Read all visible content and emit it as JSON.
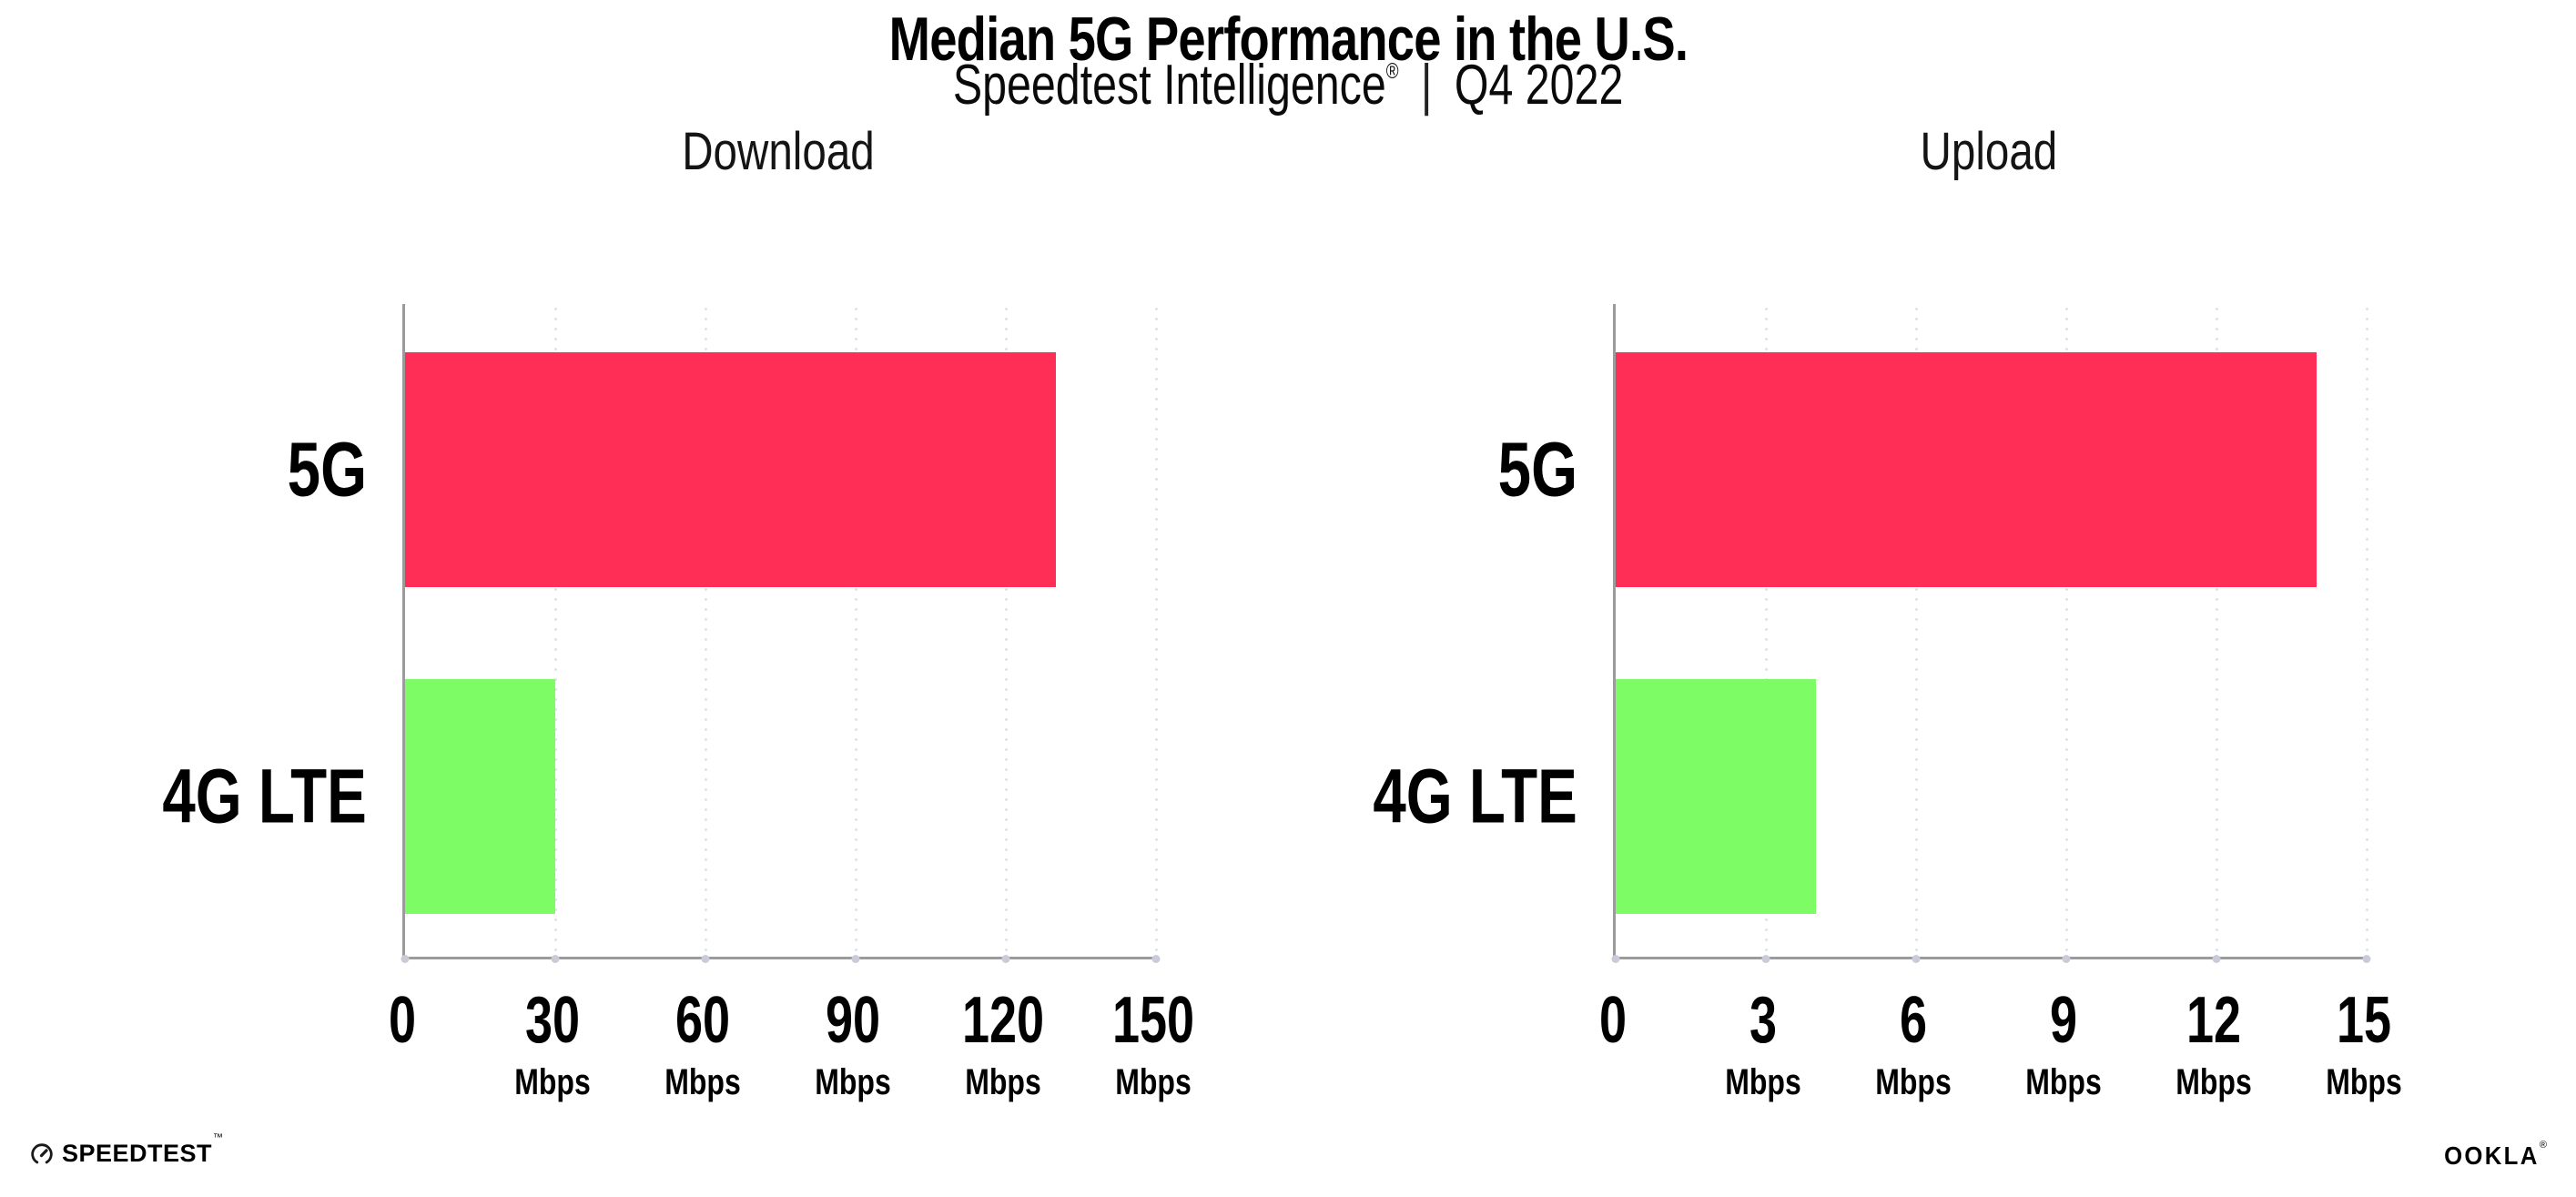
{
  "header": {
    "title": "Median 5G Performance in the U.S.",
    "subtitle_brand": "Speedtest Intelligence",
    "subtitle_reg": "®",
    "subtitle_divider": "|",
    "subtitle_period": "Q4 2022"
  },
  "chart_data": [
    {
      "type": "bar",
      "orientation": "horizontal",
      "title": "Download",
      "categories": [
        "5G",
        "4G LTE"
      ],
      "values": [
        130,
        30
      ],
      "unit": "Mbps",
      "xlim": [
        0,
        150
      ],
      "ticks": [
        0,
        30,
        60,
        90,
        120,
        150
      ],
      "grid": "dotted-vertical",
      "legend": "none",
      "bar_colors": [
        "#ff2e56",
        "#7dfc66"
      ]
    },
    {
      "type": "bar",
      "orientation": "horizontal",
      "title": "Upload",
      "categories": [
        "5G",
        "4G LTE"
      ],
      "values": [
        14,
        4
      ],
      "unit": "Mbps",
      "xlim": [
        0,
        15
      ],
      "ticks": [
        0,
        3,
        6,
        9,
        12,
        15
      ],
      "grid": "dotted-vertical",
      "legend": "none",
      "bar_colors": [
        "#ff2e56",
        "#7dfc66"
      ]
    }
  ],
  "colors": {
    "bar_5g": "#ff2e56",
    "bar_4g_lte": "#7dfc66",
    "axis": "#9b9b9b",
    "grid_dot": "#dfe0ea",
    "text": "#000000"
  },
  "footer": {
    "speedtest_logo_text": "SPEEDTEST",
    "speedtest_tm": "™",
    "ookla_logo_text": "OOKLA",
    "ookla_reg": "®"
  }
}
